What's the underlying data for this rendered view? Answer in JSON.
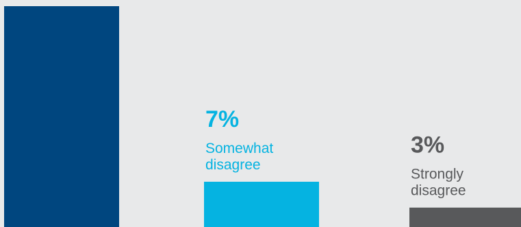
{
  "chart_data": {
    "type": "bar",
    "categories": [
      "",
      "Somewhat disagree",
      "Strongly disagree"
    ],
    "label_lines": [
      [],
      [
        "Somewhat",
        "disagree"
      ],
      [
        "Strongly",
        "disagree"
      ]
    ],
    "values": [
      null,
      7,
      3
    ],
    "value_labels": [
      "",
      "7%",
      "3%"
    ],
    "bar_colors": [
      "#00467f",
      "#05b3e1",
      "#58595b"
    ],
    "label_colors": [
      "#00467f",
      "#05b3e1",
      "#58595b"
    ],
    "ylim": [
      0,
      12
    ],
    "grid": false,
    "title": "",
    "xlabel": "",
    "ylabel": ""
  }
}
